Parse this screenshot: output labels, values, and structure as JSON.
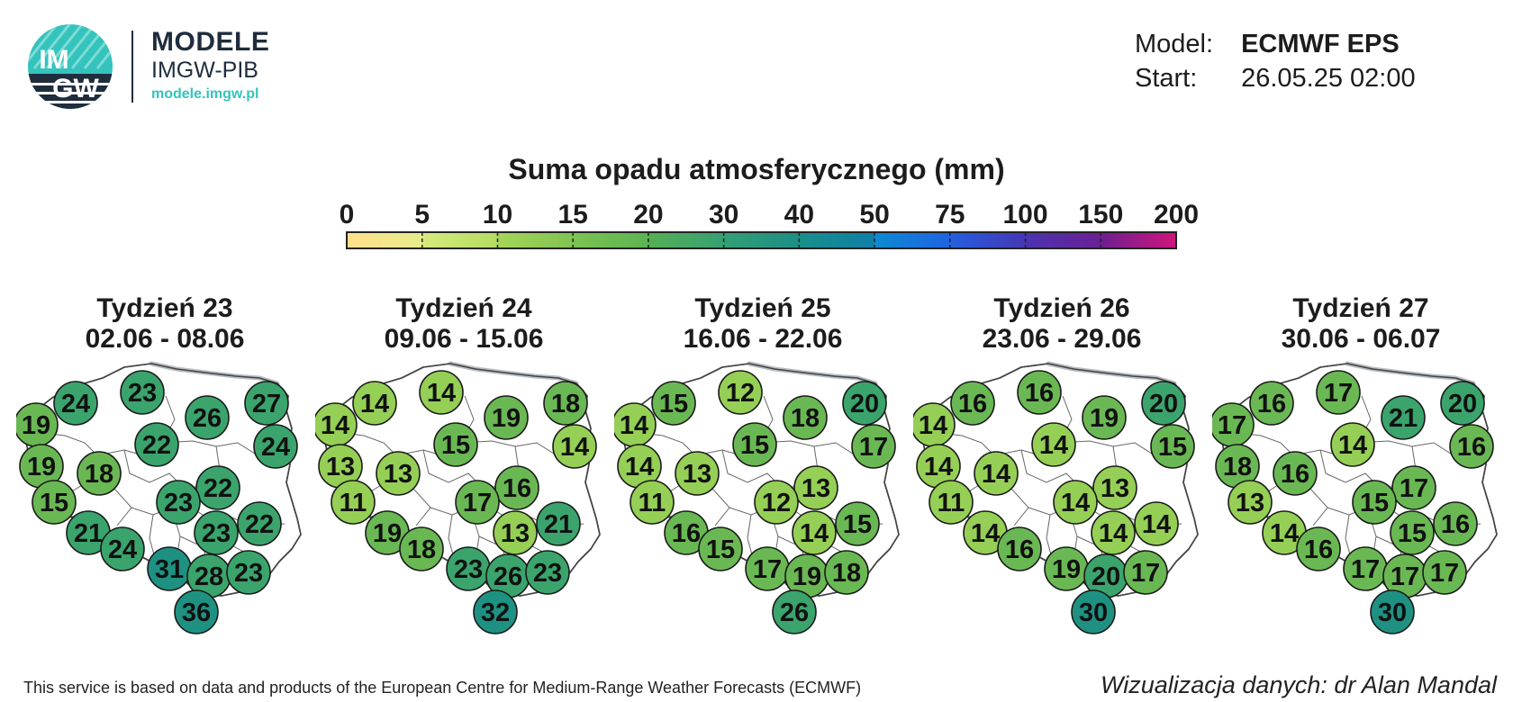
{
  "logo": {
    "badge_text_top": "IM",
    "badge_text_bottom": "GW",
    "brand": "MODELE",
    "subtitle": "IMGW-PIB",
    "url": "modele.imgw.pl"
  },
  "model_info": {
    "model_label": "Model:",
    "model_value": "ECMWF EPS",
    "start_label": "Start:",
    "start_value": "26.05.25 02:00"
  },
  "legend": {
    "title": "Suma opadu atmosferycznego (mm)",
    "ticks": [
      "0",
      "5",
      "10",
      "15",
      "20",
      "30",
      "40",
      "50",
      "75",
      "100",
      "150",
      "200"
    ],
    "colors": [
      [
        "#ffe08a",
        "#e6ec8c"
      ],
      [
        "#d6ea7c",
        "#b3dc62"
      ],
      [
        "#a6d558",
        "#7fc452"
      ],
      [
        "#7cc352",
        "#5cb352"
      ],
      [
        "#56af55",
        "#35a073"
      ],
      [
        "#33a074",
        "#1c8e86"
      ],
      [
        "#198f8a",
        "#0f7fa8"
      ],
      [
        "#0d8ad2",
        "#1f63e2"
      ],
      [
        "#2460e0",
        "#4636b4"
      ],
      [
        "#4a33b0",
        "#6a2094"
      ],
      [
        "#6d1f90",
        "#d0157d"
      ]
    ]
  },
  "weeks": [
    {
      "week": "Tydzień 23",
      "dates": "02.06 - 08.06",
      "values": [
        24,
        23,
        27,
        19,
        26,
        22,
        24,
        19,
        18,
        22,
        15,
        23,
        22,
        21,
        23,
        24,
        31,
        28,
        23,
        36
      ]
    },
    {
      "week": "Tydzień 24",
      "dates": "09.06 - 15.06",
      "values": [
        14,
        14,
        18,
        14,
        19,
        15,
        14,
        13,
        13,
        16,
        11,
        17,
        21,
        19,
        13,
        18,
        23,
        26,
        23,
        32
      ]
    },
    {
      "week": "Tydzień 25",
      "dates": "16.06 - 22.06",
      "values": [
        15,
        12,
        20,
        14,
        18,
        15,
        17,
        14,
        13,
        13,
        11,
        12,
        15,
        16,
        14,
        15,
        17,
        19,
        18,
        26
      ]
    },
    {
      "week": "Tydzień 26",
      "dates": "23.06 - 29.06",
      "values": [
        16,
        16,
        20,
        14,
        19,
        14,
        15,
        14,
        14,
        13,
        11,
        14,
        14,
        14,
        14,
        16,
        19,
        20,
        17,
        30
      ]
    },
    {
      "week": "Tydzień 27",
      "dates": "30.06 - 06.07",
      "values": [
        16,
        17,
        20,
        17,
        21,
        14,
        16,
        18,
        16,
        17,
        13,
        15,
        16,
        14,
        15,
        16,
        17,
        17,
        17,
        30
      ]
    }
  ],
  "footer": {
    "attribution": "This service is based on data and products of the European Centre for Medium-Range Weather Forecasts (ECMWF)",
    "credit": "Wizualizacja danych: dr Alan Mandal"
  }
}
